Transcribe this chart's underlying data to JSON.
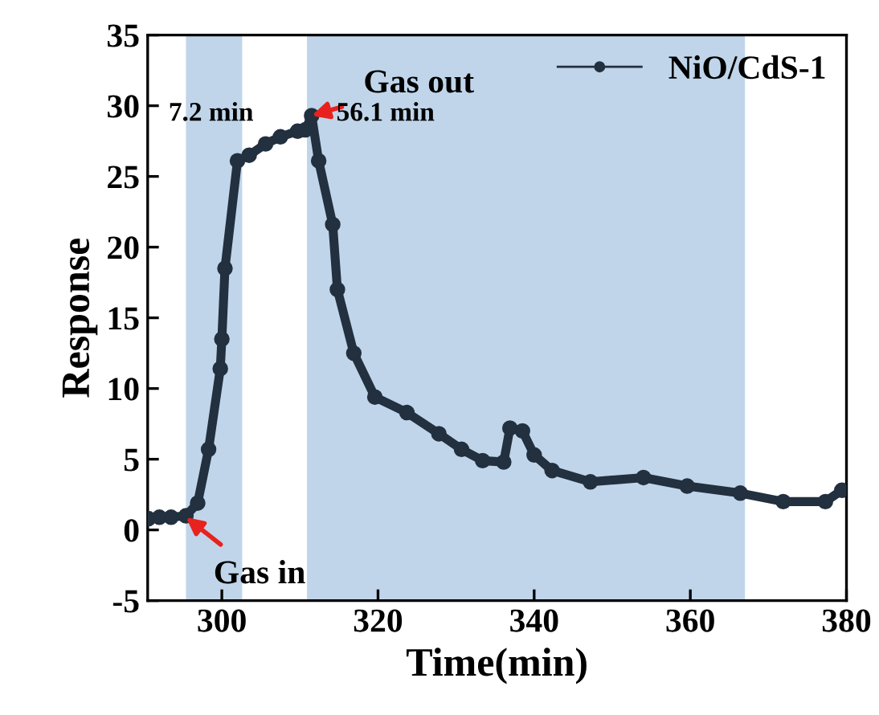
{
  "chart_data": {
    "type": "line",
    "xlabel": "Time(min)",
    "ylabel": "Response",
    "xlim": [
      290.5,
      380
    ],
    "xticks": [
      300,
      320,
      340,
      360,
      380
    ],
    "ylim": [
      -5,
      35
    ],
    "yticks": [
      -5,
      0,
      5,
      10,
      15,
      20,
      25,
      30,
      35
    ],
    "marker": "circle",
    "line_style": "solid",
    "legend": "top right",
    "grid": false,
    "series": [
      {
        "name": "NiO/CdS-1",
        "color": "#22303f",
        "x": [
          290.6,
          292,
          293.5,
          295.4,
          296.9,
          298.3,
          299.8,
          300.0,
          300.4,
          302.0,
          303.5,
          305.6,
          307.5,
          309.7,
          310.7,
          311.5,
          312.4,
          314.2,
          314.8,
          316.9,
          319.6,
          323.7,
          327.8,
          330.7,
          333.4,
          336.1,
          336.9,
          338.5,
          340.0,
          342.3,
          347.2,
          354.0,
          359.6,
          366.4,
          371.9,
          377.3,
          379.4
        ],
        "values": [
          0.8,
          0.9,
          0.9,
          1.0,
          1.9,
          5.7,
          11.4,
          13.5,
          18.5,
          26.1,
          26.5,
          27.3,
          27.8,
          28.2,
          28.3,
          29.3,
          26.1,
          21.6,
          17.0,
          12.5,
          9.4,
          8.3,
          6.8,
          5.7,
          4.9,
          4.8,
          7.2,
          7.0,
          5.3,
          4.2,
          3.4,
          3.7,
          3.1,
          2.6,
          2.0,
          2.0,
          2.8
        ]
      }
    ],
    "bands": [
      {
        "axis": "x",
        "from": 295.4,
        "to": 302.6,
        "color": "#c0d5ea"
      },
      {
        "axis": "x",
        "from": 310.9,
        "to": 367.0,
        "color": "#c0d5ea"
      }
    ],
    "annotations": [
      {
        "text": "Gas in",
        "x": 295.4,
        "y": 0.9
      },
      {
        "text": "Gas out",
        "x": 311.5,
        "y": 29.3
      },
      "7.2 min",
      "56.1 min"
    ]
  }
}
